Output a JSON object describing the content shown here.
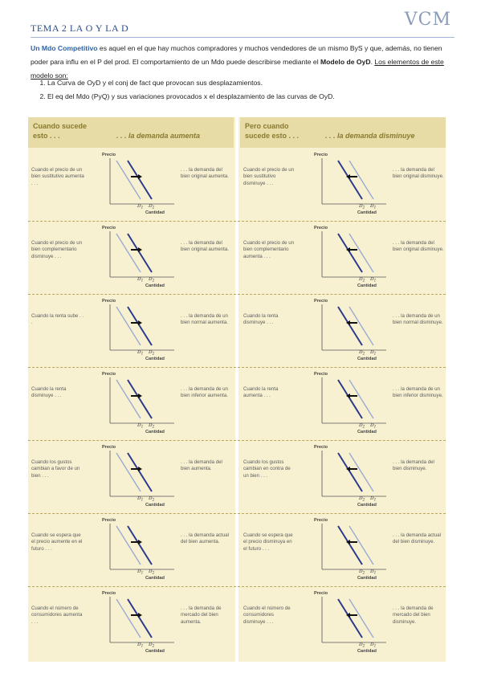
{
  "header": {
    "title": "TEMA 2 LA O Y LA D",
    "logo": "VCM"
  },
  "intro": {
    "highlight": "Un Mdo Competitivo",
    "text1": " es aquel en el que hay muchos compradores y muchos vendedores de un mismo ByS y que, además, no tienen poder para influ en el P del prod. El comportamiento de un Mdo puede describirse mediante el ",
    "model": "Modelo de OyD",
    "text2": ". ",
    "elements": "Los elementos de este modelo son:"
  },
  "list": [
    "La Curva de OyD y el conj de fact que provocan sus desplazamientos.",
    "El eq del Mdo (PyQ) y sus variaciones provocados x el desplazamiento de las curvas de OyD."
  ],
  "table": {
    "left_head": {
      "a": "Cuando sucede",
      "b": "esto . . .",
      "c": ". . . la demanda aumenta"
    },
    "right_head": {
      "a": "Pero cuando",
      "b": "sucede esto . . .",
      "c": ". . . la demanda disminuye"
    },
    "axis_y": "Precio",
    "axis_x": "Cantidad",
    "rows": [
      {
        "left": {
          "cond": "Cuando el precio de un bien sustitutivo aumenta . . .",
          "res": ". . . la demanda del bien original aumenta.",
          "d_a": "D1",
          "d_b": "D2"
        },
        "right": {
          "cond": "Cuando el precio de un bien sustitutivo disminuye . . .",
          "res": ". . . la demanda del bien original disminuye.",
          "d_a": "D2",
          "d_b": "D1"
        }
      },
      {
        "left": {
          "cond": "Cuando el precio de un bien complementario disminuye . . .",
          "res": ". . . la demanda del bien original aumenta.",
          "d_a": "D1",
          "d_b": "D2"
        },
        "right": {
          "cond": "Cuando el precio de un bien complementario aumenta . . .",
          "res": ". . . la demanda del bien original disminuye.",
          "d_a": "D2",
          "d_b": "D1"
        }
      },
      {
        "left": {
          "cond": "Cuando la renta sube . . .",
          "res": ". . . la demanda de un bien normal aumenta.",
          "d_a": "D1",
          "d_b": "D2"
        },
        "right": {
          "cond": "Cuando la renta disminuye . . .",
          "res": ". . . la demanda de un bien normal disminuye.",
          "d_a": "D2",
          "d_b": "D1"
        }
      },
      {
        "left": {
          "cond": "Cuando la renta disminuye . . .",
          "res": ". . . la demanda de un bien inferior aumenta.",
          "d_a": "D1",
          "d_b": "D2"
        },
        "right": {
          "cond": "Cuando la renta aumenta . . .",
          "res": ". . . la demanda de un bien inferior disminuye.",
          "d_a": "D2",
          "d_b": "D1"
        }
      },
      {
        "left": {
          "cond": "Cuando los gustos cambian a favor de un bien . . .",
          "res": ". . . la demanda del bien aumenta.",
          "d_a": "D1",
          "d_b": "D2"
        },
        "right": {
          "cond": "Cuando los gustos cambian en contra de un bien . . .",
          "res": ". . . la demanda del bien disminuye.",
          "d_a": "D2",
          "d_b": "D1"
        }
      },
      {
        "left": {
          "cond": "Cuando se espera que el precio aumente en el futuro . . .",
          "res": ". . . la demanda actual del bien aumenta.",
          "d_a": "D1",
          "d_b": "D2"
        },
        "right": {
          "cond": "Cuando se espera que el precio disminuya en el futuro . . .",
          "res": ". . . la demanda actual del bien disminuye.",
          "d_a": "D2",
          "d_b": "D1"
        }
      },
      {
        "left": {
          "cond": "Cuando el número de consumidores aumenta . . .",
          "res": ". . . la demanda de mercado del bien aumenta.",
          "d_a": "D1",
          "d_b": "D2"
        },
        "right": {
          "cond": "Cuando el número de consumidores disminuye . . .",
          "res": ". . . la demanda de mercado del bien disminuye.",
          "d_a": "D2",
          "d_b": "D1"
        }
      }
    ]
  },
  "colors": {
    "header": "#2c4f8a",
    "highlight": "#2e63a7",
    "table_bg": "#f7f1d2",
    "table_head": "#e7dba6",
    "curve_new": "#2d3a8c",
    "curve_old": "#9aa8d4"
  }
}
